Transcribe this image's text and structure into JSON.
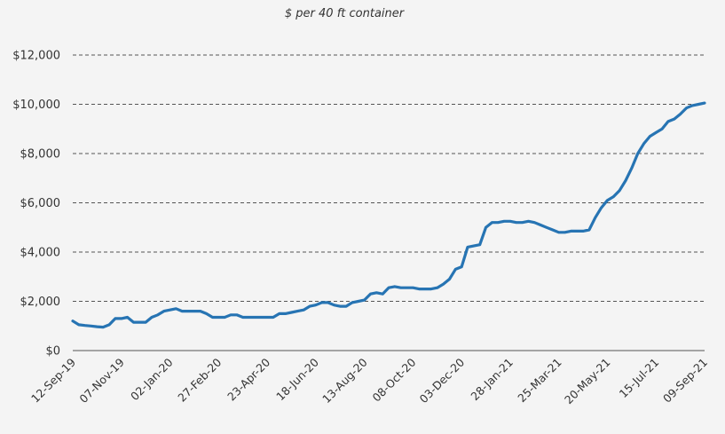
{
  "chart_data": {
    "type": "line",
    "title": "",
    "subtitle": "$ per 40 ft container",
    "xlabel": "",
    "ylabel": "",
    "ylim": [
      0,
      12000
    ],
    "yticks": [
      0,
      2000,
      4000,
      6000,
      8000,
      10000,
      12000
    ],
    "ytick_labels": [
      "$0",
      "$2,000",
      "$4,000",
      "$6,000",
      "$8,000",
      "$10,000",
      "$12,000"
    ],
    "xlim": [
      "2019-09-12",
      "2021-09-09"
    ],
    "xtick_labels": [
      "12-Sep-19",
      "07-Nov-19",
      "02-Jan-20",
      "27-Feb-20",
      "23-Apr-20",
      "18-Jun-20",
      "13-Aug-20",
      "08-Oct-20",
      "03-Dec-20",
      "28-Jan-21",
      "25-Mar-21",
      "20-May-21",
      "15-Jul-21",
      "09-Sep-21"
    ],
    "grid": true,
    "legend": "none",
    "colors": {
      "series": "#2774b3",
      "grid": "#555555",
      "background": "#f4f4f4"
    },
    "series": [
      {
        "x": [
          "2019-09-12",
          "2019-09-19",
          "2019-09-26",
          "2019-10-03",
          "2019-10-10",
          "2019-10-17",
          "2019-10-24",
          "2019-10-31",
          "2019-11-07",
          "2019-11-14",
          "2019-11-21",
          "2019-11-28",
          "2019-12-05",
          "2019-12-12",
          "2019-12-19",
          "2019-12-26",
          "2020-01-02",
          "2020-01-09",
          "2020-01-16",
          "2020-01-23",
          "2020-01-30",
          "2020-02-06",
          "2020-02-13",
          "2020-02-20",
          "2020-02-27",
          "2020-03-05",
          "2020-03-12",
          "2020-03-19",
          "2020-03-26",
          "2020-04-02",
          "2020-04-09",
          "2020-04-16",
          "2020-04-23",
          "2020-04-30",
          "2020-05-07",
          "2020-05-14",
          "2020-05-21",
          "2020-05-28",
          "2020-06-04",
          "2020-06-11",
          "2020-06-18",
          "2020-06-25",
          "2020-07-02",
          "2020-07-09",
          "2020-07-16",
          "2020-07-23",
          "2020-07-30",
          "2020-08-06",
          "2020-08-13",
          "2020-08-20",
          "2020-08-27",
          "2020-09-03",
          "2020-09-10",
          "2020-09-17",
          "2020-09-24",
          "2020-10-01",
          "2020-10-08",
          "2020-10-15",
          "2020-10-22",
          "2020-10-29",
          "2020-11-05",
          "2020-11-12",
          "2020-11-19",
          "2020-11-26",
          "2020-12-03",
          "2020-12-10",
          "2020-12-17",
          "2020-12-24",
          "2020-12-31",
          "2021-01-07",
          "2021-01-14",
          "2021-01-21",
          "2021-01-28",
          "2021-02-04",
          "2021-02-11",
          "2021-02-18",
          "2021-02-25",
          "2021-03-04",
          "2021-03-11",
          "2021-03-18",
          "2021-03-25",
          "2021-04-01",
          "2021-04-08",
          "2021-04-15",
          "2021-04-22",
          "2021-04-29",
          "2021-05-06",
          "2021-05-13",
          "2021-05-20",
          "2021-05-27",
          "2021-06-03",
          "2021-06-10",
          "2021-06-17",
          "2021-06-24",
          "2021-07-01",
          "2021-07-08",
          "2021-07-15",
          "2021-07-22",
          "2021-07-29",
          "2021-08-05",
          "2021-08-12",
          "2021-08-19",
          "2021-08-26",
          "2021-09-02",
          "2021-09-09"
        ],
        "values": [
          1200,
          1050,
          1020,
          1000,
          970,
          950,
          1050,
          1300,
          1300,
          1350,
          1150,
          1150,
          1150,
          1350,
          1450,
          1600,
          1650,
          1700,
          1600,
          1600,
          1600,
          1600,
          1500,
          1350,
          1350,
          1350,
          1450,
          1450,
          1350,
          1350,
          1350,
          1350,
          1350,
          1350,
          1500,
          1500,
          1550,
          1600,
          1650,
          1800,
          1850,
          1950,
          1950,
          1850,
          1800,
          1800,
          1950,
          2000,
          2050,
          2300,
          2350,
          2300,
          2550,
          2600,
          2550,
          2550,
          2550,
          2500,
          2500,
          2500,
          2550,
          2700,
          2900,
          3300,
          3400,
          4200,
          4250,
          4300,
          5000,
          5200,
          5200,
          5250,
          5250,
          5200,
          5200,
          5250,
          5200,
          5100,
          5000,
          4900,
          4800,
          4800,
          4850,
          4850,
          4850,
          4900,
          5400,
          5800,
          6100,
          6250,
          6500,
          6900,
          7400,
          8000,
          8400,
          8700,
          8850,
          9000,
          9300,
          9400,
          9600,
          9850,
          9950,
          10000,
          10050
        ]
      }
    ]
  }
}
